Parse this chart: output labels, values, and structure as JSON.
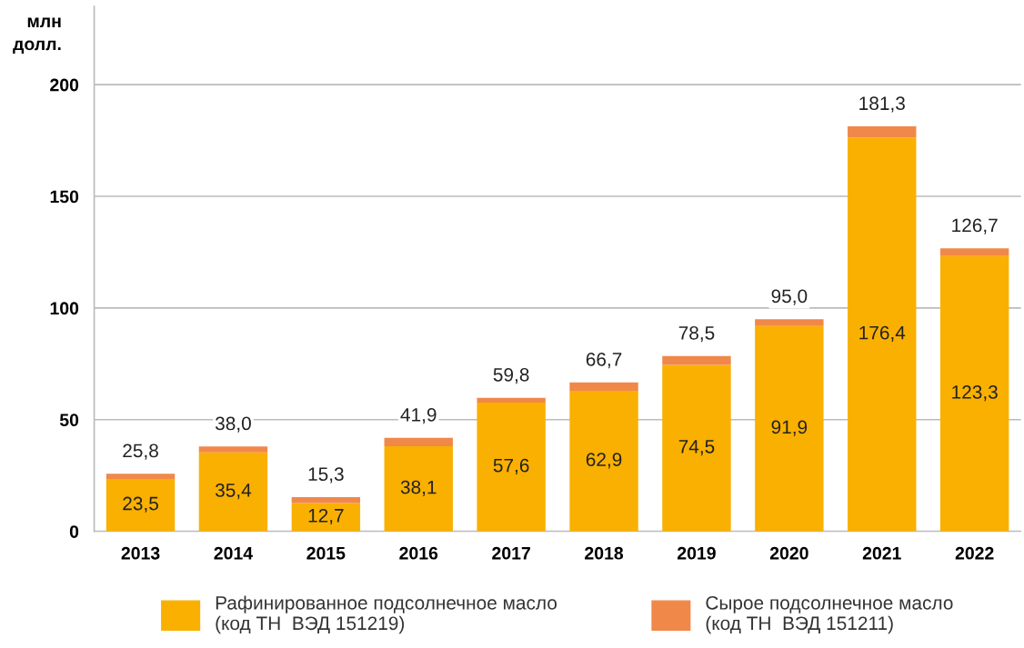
{
  "chart_data": {
    "type": "bar",
    "stacked": true,
    "ylabel": "млн\nдолл.",
    "categories": [
      "2013",
      "2014",
      "2015",
      "2016",
      "2017",
      "2018",
      "2019",
      "2020",
      "2021",
      "2022"
    ],
    "series": [
      {
        "name": "Рафинированное подсолнечное масло\n(код ТН  ВЭД 151219)",
        "color": "#f9b000",
        "values": [
          23.5,
          35.4,
          12.7,
          38.1,
          57.6,
          62.9,
          74.5,
          91.9,
          176.4,
          123.3
        ],
        "value_labels": [
          "23,5",
          "35,4",
          "12,7",
          "38,1",
          "57,6",
          "62,9",
          "74,5",
          "91,9",
          "176,4",
          "123,3"
        ]
      },
      {
        "name": "Сырое подсолнечное масло\n(код ТН  ВЭД 151211)",
        "color": "#f0884a",
        "values": [
          2.3,
          2.6,
          2.6,
          3.8,
          2.2,
          3.8,
          4.0,
          3.1,
          4.9,
          3.4
        ]
      }
    ],
    "totals": [
      "25,8",
      "38,0",
      "15,3",
      "41,9",
      "59,8",
      "66,7",
      "78,5",
      "95,0",
      "181,3",
      "126,7"
    ],
    "ylim": [
      0,
      235
    ],
    "yticks": [
      0,
      50,
      100,
      150,
      200
    ],
    "grid": "y",
    "legend": "bottom"
  }
}
